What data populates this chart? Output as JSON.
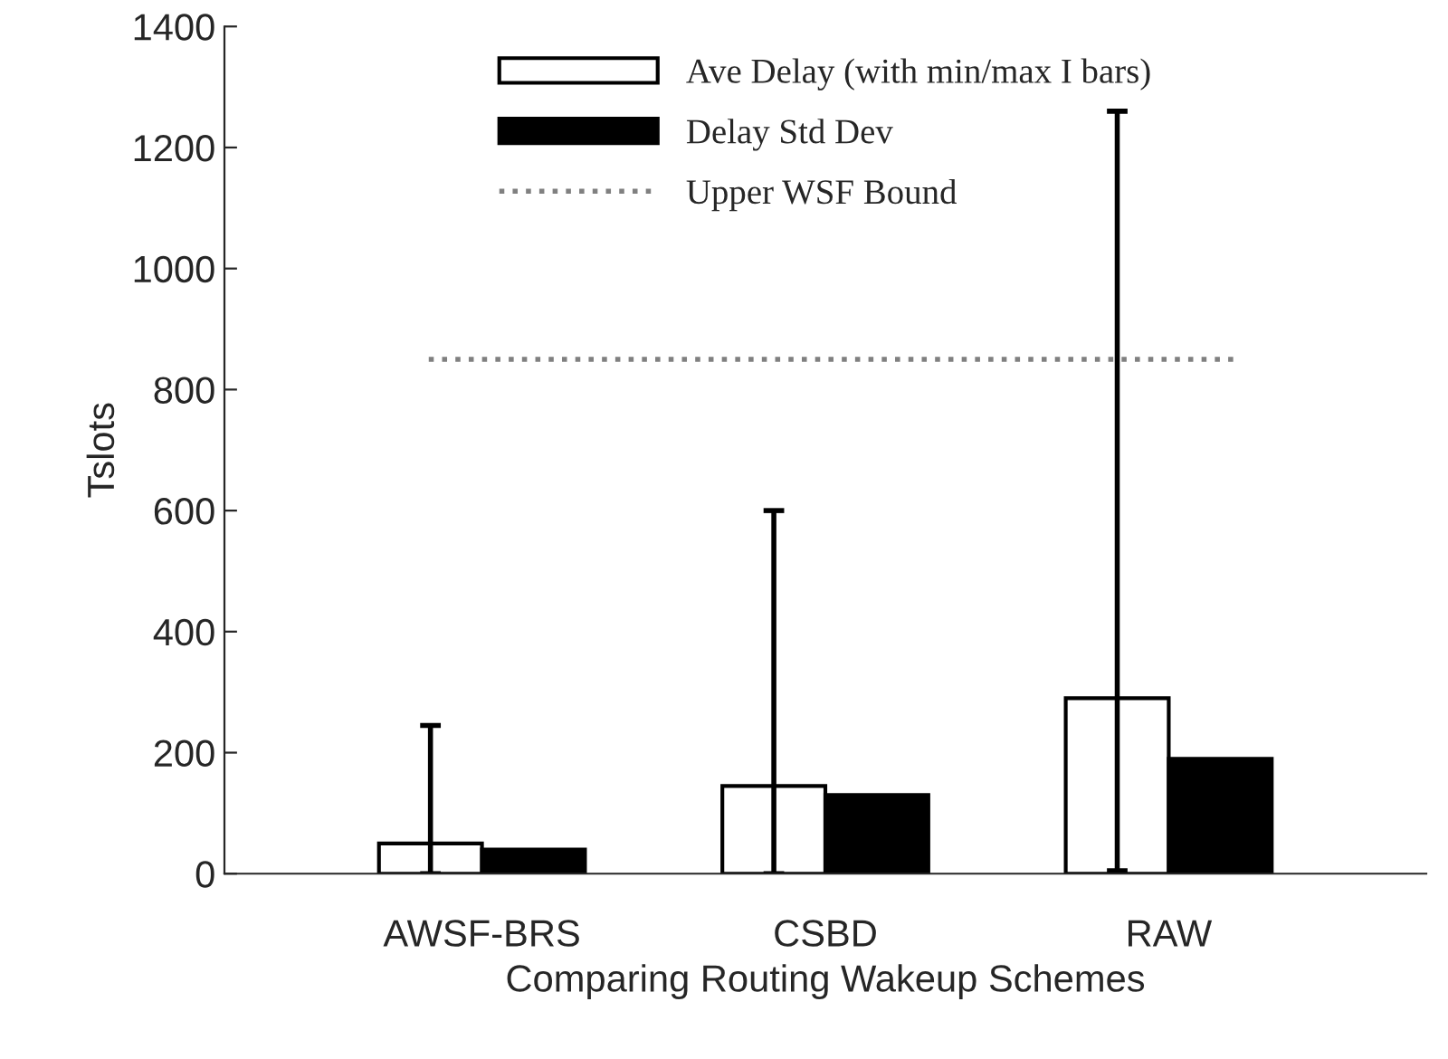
{
  "chart_data": {
    "type": "bar",
    "xlabel": "Comparing Routing Wakeup Schemes",
    "ylabel": "Tslots",
    "categories": [
      "AWSF-BRS",
      "CSBD",
      "RAW"
    ],
    "series": [
      {
        "name": "Ave Delay (with min/max I bars)",
        "color": "#ffffff",
        "values": [
          50,
          145,
          290
        ],
        "errors": [
          [
            0,
            245
          ],
          [
            0,
            600
          ],
          [
            5,
            1260
          ]
        ]
      },
      {
        "name": "Delay Std Dev",
        "color": "#000000",
        "values": [
          40,
          130,
          190
        ]
      }
    ],
    "ref_lines": [
      {
        "axis": "y",
        "value": 850,
        "label": "Upper WSF Bound",
        "color": "#808080",
        "line_style": "dotted"
      }
    ],
    "ylim": [
      0,
      1400
    ],
    "yticks": [
      0,
      200,
      400,
      600,
      800,
      1000,
      1200,
      1400
    ],
    "grid": false,
    "legend": "top"
  }
}
